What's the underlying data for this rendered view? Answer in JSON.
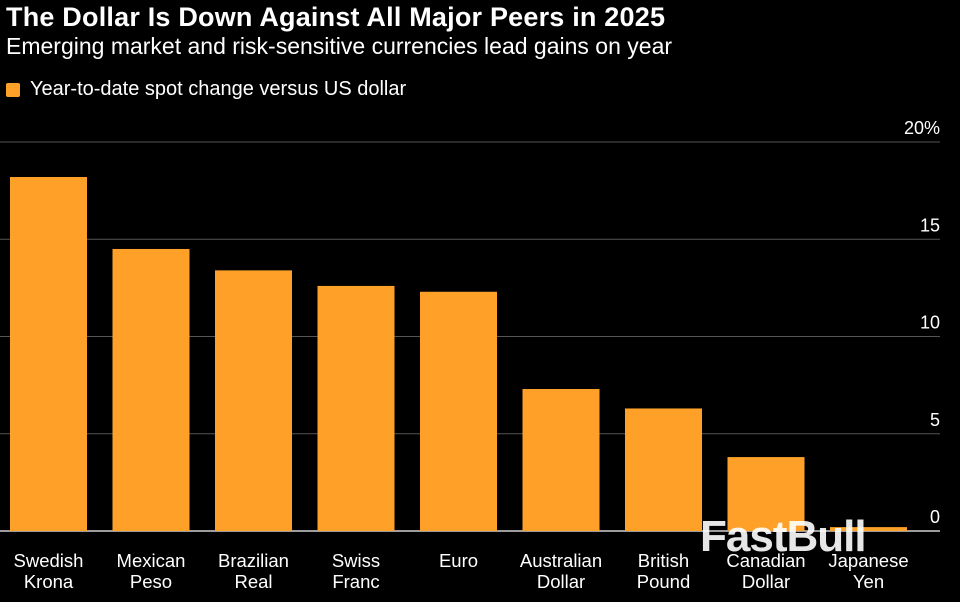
{
  "colors": {
    "bar": "#FFA028",
    "grid": "#555555",
    "axis": "#cfcfcf"
  },
  "chart_data": {
    "type": "bar",
    "title": "The Dollar Is Down Against All Major Peers in 2025",
    "subtitle": "Emerging market and risk-sensitive currencies lead gains on year",
    "legend": "Year-to-date spot change versus US dollar",
    "categories": [
      [
        "Swedish",
        "Krona"
      ],
      [
        "Mexican",
        "Peso"
      ],
      [
        "Brazilian",
        "Real"
      ],
      [
        "Swiss",
        "Franc"
      ],
      [
        "Euro"
      ],
      [
        "Australian",
        "Dollar"
      ],
      [
        "British",
        "Pound"
      ],
      [
        "Canadian",
        "Dollar"
      ],
      [
        "Japanese",
        "Yen"
      ]
    ],
    "values": [
      18.2,
      14.5,
      13.4,
      12.6,
      12.3,
      7.3,
      6.3,
      3.8,
      0.2
    ],
    "ylim": [
      0,
      20
    ],
    "yticks": [
      {
        "value": 20,
        "label": "20%"
      },
      {
        "value": 15,
        "label": "15"
      },
      {
        "value": 10,
        "label": "10"
      },
      {
        "value": 5,
        "label": "5"
      },
      {
        "value": 0,
        "label": "0"
      }
    ],
    "legend_position": "top-left",
    "grid": true
  },
  "watermark": "FastBull"
}
